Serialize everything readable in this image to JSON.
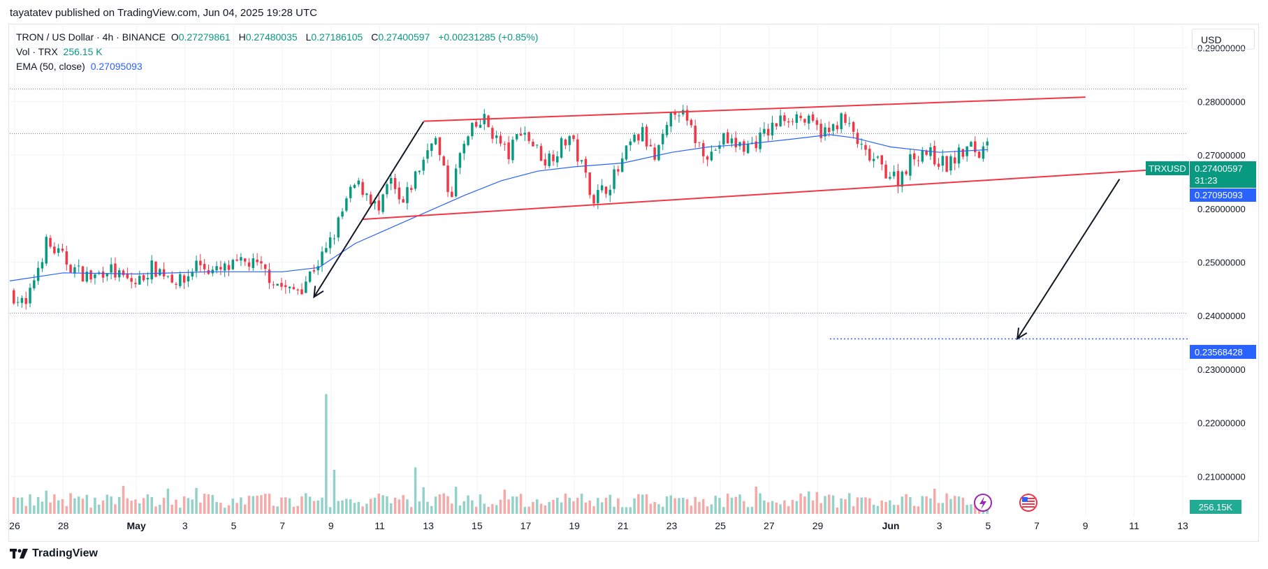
{
  "publisher": "tayatatev published on TradingView.com, Jun 04, 2025 19:28 UTC",
  "legend": {
    "symbol": "TRON / US Dollar · 4h · BINANCE",
    "o_label": "O",
    "o": "0.27279861",
    "h_label": "H",
    "h": "0.27480035",
    "l_label": "L",
    "l": "0.27186105",
    "c_label": "C",
    "c": "0.27400597",
    "change": "+0.00231285 (+0.85%)",
    "vol_label": "Vol · TRX",
    "vol": "256.15 K",
    "ema_label": "EMA (50, close)",
    "ema": "0.27095093"
  },
  "currency": "USD",
  "footer": "TradingView",
  "labels": {
    "symbol_tag": "TRXUSD",
    "last_price": "0.27400597",
    "countdown": "31:23",
    "ema_value": "0.27095093",
    "target": "0.23568428",
    "volume": "256.15K"
  },
  "colors": {
    "up": "#089981",
    "down": "#f23645",
    "up_volume": "#92d2c8",
    "down_volume": "#f7a9a7",
    "ema": "#2962ff",
    "channel": "#f23645",
    "arrow": "#131722",
    "target": "#2962ff"
  },
  "chart_data": {
    "type": "candlestick",
    "timeframe": "4h",
    "y_ticks": [
      "0.29000000",
      "0.28000000",
      "0.27000000",
      "0.26000000",
      "0.25000000",
      "0.24000000",
      "0.23000000",
      "0.22000000",
      "0.21000000"
    ],
    "y_tick_values": [
      0.29,
      0.28,
      0.27,
      0.26,
      0.25,
      0.24,
      0.23,
      0.22,
      0.21
    ],
    "ylim": [
      0.2025,
      0.2945
    ],
    "x_ticks": [
      {
        "label": "26",
        "day": -5
      },
      {
        "label": "28",
        "day": -3
      },
      {
        "label": "May",
        "day": 0
      },
      {
        "label": "3",
        "day": 2
      },
      {
        "label": "5",
        "day": 4
      },
      {
        "label": "7",
        "day": 6
      },
      {
        "label": "9",
        "day": 8
      },
      {
        "label": "11",
        "day": 10
      },
      {
        "label": "13",
        "day": 12
      },
      {
        "label": "15",
        "day": 14
      },
      {
        "label": "17",
        "day": 16
      },
      {
        "label": "19",
        "day": 18
      },
      {
        "label": "21",
        "day": 20
      },
      {
        "label": "23",
        "day": 22
      },
      {
        "label": "25",
        "day": 24
      },
      {
        "label": "27",
        "day": 26
      },
      {
        "label": "29",
        "day": 28
      },
      {
        "label": "Jun",
        "day": 31
      },
      {
        "label": "3",
        "day": 33
      },
      {
        "label": "5",
        "day": 35
      },
      {
        "label": "7",
        "day": 37
      },
      {
        "label": "9",
        "day": 39
      },
      {
        "label": "11",
        "day": 41
      },
      {
        "label": "13",
        "day": 43
      }
    ],
    "xlim": [
      -5.2,
      43.2
    ],
    "close_path": [
      [
        -5.2,
        0.2445
      ],
      [
        -4.5,
        0.2415
      ],
      [
        -4.2,
        0.247
      ],
      [
        -3.7,
        0.2535
      ],
      [
        -3.2,
        0.2515
      ],
      [
        -2.5,
        0.2485
      ],
      [
        -1.8,
        0.247
      ],
      [
        -1.2,
        0.249
      ],
      [
        -0.6,
        0.247
      ],
      [
        0.0,
        0.246
      ],
      [
        0.6,
        0.249
      ],
      [
        1.2,
        0.248
      ],
      [
        1.9,
        0.246
      ],
      [
        2.5,
        0.25
      ],
      [
        3.2,
        0.248
      ],
      [
        3.9,
        0.249
      ],
      [
        4.6,
        0.25
      ],
      [
        5.2,
        0.2485
      ],
      [
        5.8,
        0.246
      ],
      [
        6.3,
        0.2445
      ],
      [
        6.8,
        0.2455
      ],
      [
        7.3,
        0.249
      ],
      [
        7.8,
        0.252
      ],
      [
        8.2,
        0.256
      ],
      [
        8.6,
        0.261
      ],
      [
        9.0,
        0.2645
      ],
      [
        9.5,
        0.263
      ],
      [
        10.0,
        0.259
      ],
      [
        10.4,
        0.2655
      ],
      [
        10.9,
        0.26
      ],
      [
        11.4,
        0.2655
      ],
      [
        11.9,
        0.27
      ],
      [
        12.2,
        0.2745
      ],
      [
        12.5,
        0.269
      ],
      [
        12.9,
        0.262
      ],
      [
        13.3,
        0.27
      ],
      [
        13.8,
        0.2745
      ],
      [
        14.3,
        0.2765
      ],
      [
        14.8,
        0.273
      ],
      [
        15.3,
        0.27
      ],
      [
        15.8,
        0.275
      ],
      [
        16.3,
        0.272
      ],
      [
        16.8,
        0.269
      ],
      [
        17.3,
        0.271
      ],
      [
        17.8,
        0.2735
      ],
      [
        18.3,
        0.268
      ],
      [
        18.8,
        0.262
      ],
      [
        19.3,
        0.264
      ],
      [
        19.8,
        0.267
      ],
      [
        20.3,
        0.272
      ],
      [
        20.8,
        0.274
      ],
      [
        21.3,
        0.269
      ],
      [
        21.8,
        0.2745
      ],
      [
        22.2,
        0.2795
      ],
      [
        22.6,
        0.276
      ],
      [
        23.1,
        0.272
      ],
      [
        23.6,
        0.27
      ],
      [
        24.1,
        0.273
      ],
      [
        24.6,
        0.272
      ],
      [
        25.1,
        0.2715
      ],
      [
        25.6,
        0.273
      ],
      [
        26.1,
        0.275
      ],
      [
        26.6,
        0.277
      ],
      [
        27.1,
        0.2775
      ],
      [
        27.6,
        0.276
      ],
      [
        28.1,
        0.2745
      ],
      [
        28.5,
        0.274
      ],
      [
        28.9,
        0.277
      ],
      [
        29.4,
        0.2745
      ],
      [
        29.9,
        0.27
      ],
      [
        30.3,
        0.269
      ],
      [
        30.8,
        0.267
      ],
      [
        31.3,
        0.2655
      ],
      [
        31.8,
        0.269
      ],
      [
        32.3,
        0.271
      ],
      [
        32.8,
        0.2695
      ],
      [
        33.3,
        0.268
      ],
      [
        33.8,
        0.27
      ],
      [
        34.3,
        0.2715
      ],
      [
        34.7,
        0.27
      ],
      [
        35.0,
        0.274
      ]
    ],
    "ema_path": [
      [
        -5.2,
        0.2465
      ],
      [
        -3,
        0.248
      ],
      [
        0,
        0.2478
      ],
      [
        3,
        0.2482
      ],
      [
        6,
        0.2482
      ],
      [
        7.5,
        0.249
      ],
      [
        9,
        0.2535
      ],
      [
        10.5,
        0.2565
      ],
      [
        12,
        0.2595
      ],
      [
        13.5,
        0.2625
      ],
      [
        15,
        0.2652
      ],
      [
        16.5,
        0.267
      ],
      [
        18,
        0.2678
      ],
      [
        20,
        0.2685
      ],
      [
        22,
        0.2705
      ],
      [
        23.5,
        0.2715
      ],
      [
        25,
        0.272
      ],
      [
        27,
        0.273
      ],
      [
        28.5,
        0.2738
      ],
      [
        29.5,
        0.2732
      ],
      [
        31,
        0.2715
      ],
      [
        33,
        0.2705
      ],
      [
        35,
        0.271
      ]
    ],
    "volume_spikes": [
      {
        "day": 7.8,
        "level": 0.98,
        "dir": "up"
      },
      {
        "day": 8.2,
        "level": 0.36,
        "dir": "up"
      },
      {
        "day": 11.5,
        "level": 0.38,
        "dir": "up"
      }
    ],
    "channel_upper": [
      [
        11.8,
        0.2763
      ],
      [
        39.0,
        0.2808
      ]
    ],
    "channel_lower": [
      [
        9.3,
        0.258
      ],
      [
        42.0,
        0.2673
      ]
    ],
    "arrow_up": {
      "from": [
        7.3,
        0.2435
      ],
      "to": [
        11.8,
        0.2762
      ]
    },
    "arrow_down": {
      "from": [
        40.4,
        0.2655
      ],
      "to": [
        36.2,
        0.2357
      ]
    },
    "target_level": {
      "value": 0.23568428,
      "from_day": 28.5
    },
    "reference_lines": [
      0.2823,
      0.274,
      0.2405
    ]
  }
}
